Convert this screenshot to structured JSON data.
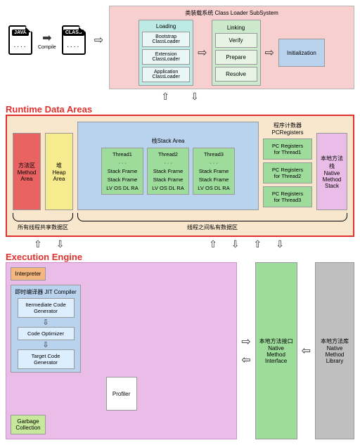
{
  "input": {
    "java": "JAVA",
    "class": "CLASS",
    "compile": "Compile"
  },
  "classloader": {
    "title": "类装载系统 Class Loader SubSystem",
    "loading": {
      "title": "Loading",
      "items": [
        "Bootstrap\nClassLoader",
        "Extension\nClassLoader",
        "Application\nClassLoader"
      ]
    },
    "linking": {
      "title": "Linking",
      "items": [
        "Verify",
        "Prepare",
        "Resolve"
      ]
    },
    "init": "Initialization",
    "colors": {
      "bg": "#f7cfcf",
      "border": "#b7b7b7",
      "loading_bg": "#bdeae4",
      "loading_item": "#eaf6f4",
      "linking_bg": "#cde9cb",
      "linking_item": "#e6f3e5",
      "init": "#b9d2ee"
    }
  },
  "rda": {
    "title": "Runtime Data Areas",
    "method": "方法区\nMethod\nArea",
    "heap": "堆\nHeap\nArea",
    "stackarea_title": "栈Stack Area",
    "threads": [
      "Thread1",
      "Thread2",
      "Thread3"
    ],
    "dots": "· · ·",
    "sf": "Stack Frame",
    "lv": "LV OS DL RA",
    "pcr_title": "程序计数器\nPCRegisters",
    "pcr": [
      "PC Registers\nfor Thread1",
      "PC Registers\nfor Thread2",
      "PC Registers\nfor Thread3"
    ],
    "native_stack": "本地方法\n栈\nNative\nMethod\nStack",
    "shared_label": "所有线程共享数据区",
    "private_label": "线程之间私有数据区",
    "colors": {
      "outer_border": "#e2302e",
      "bg": "#f8e6cd",
      "method": "#e96363",
      "heap": "#f6eb8e",
      "stackarea": "#b9d2ee",
      "thread": "#9edc9c",
      "native": "#e9bde7",
      "pc": "#9edc9c"
    }
  },
  "exec": {
    "title": "Execution Engine",
    "interp": "Interpreter",
    "jit_title": "即时编译器 JIT Compiler",
    "jit_items": [
      "Itermediate Code\nGenerator",
      "Code Optimizer",
      "Target Code\nGenerator"
    ],
    "profiler": "Profiler",
    "gc": "Garbage\nCollection",
    "nmi": "本地方法接口\nNative\nMethod\nInterface",
    "nml": "本地方法库\nNative\nMethod\nLibrary",
    "colors": {
      "bg": "#e9bde7",
      "interp": "#f4b77f",
      "jit_bg": "#b9d2ee",
      "jit_item": "#def",
      "ee_border": "#d090d0",
      "gc": "#c8e89c",
      "nmi": "#9edc9c",
      "nml": "#bfbfbf"
    }
  }
}
